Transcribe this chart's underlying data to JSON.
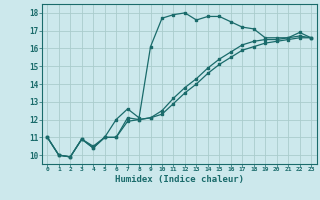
{
  "title": "",
  "xlabel": "Humidex (Indice chaleur)",
  "bg_color": "#cce8ec",
  "grid_color": "#aacccc",
  "line_color": "#1a6b6b",
  "xlim": [
    -0.5,
    23.5
  ],
  "ylim": [
    9.5,
    18.5
  ],
  "xticks": [
    0,
    1,
    2,
    3,
    4,
    5,
    6,
    7,
    8,
    9,
    10,
    11,
    12,
    13,
    14,
    15,
    16,
    17,
    18,
    19,
    20,
    21,
    22,
    23
  ],
  "yticks": [
    10,
    11,
    12,
    13,
    14,
    15,
    16,
    17,
    18
  ],
  "line1_x": [
    0,
    1,
    2,
    3,
    4,
    5,
    6,
    7,
    8,
    9,
    10,
    11,
    12,
    13,
    14,
    15,
    16,
    17,
    18,
    19,
    20,
    21,
    22,
    23
  ],
  "line1_y": [
    11.0,
    10.0,
    9.9,
    10.9,
    10.5,
    11.0,
    12.0,
    12.6,
    12.1,
    16.1,
    17.7,
    17.9,
    18.0,
    17.6,
    17.8,
    17.8,
    17.5,
    17.2,
    17.1,
    16.6,
    16.6,
    16.6,
    16.9,
    16.6
  ],
  "line2_x": [
    0,
    1,
    2,
    3,
    4,
    5,
    6,
    7,
    8,
    9,
    10,
    11,
    12,
    13,
    14,
    15,
    16,
    17,
    18,
    19,
    20,
    21,
    22,
    23
  ],
  "line2_y": [
    11.0,
    10.0,
    9.9,
    10.9,
    10.4,
    11.0,
    11.0,
    12.1,
    12.0,
    12.1,
    12.5,
    13.2,
    13.8,
    14.3,
    14.9,
    15.4,
    15.8,
    16.2,
    16.4,
    16.5,
    16.5,
    16.6,
    16.7,
    16.6
  ],
  "line3_x": [
    0,
    1,
    2,
    3,
    4,
    5,
    6,
    7,
    8,
    9,
    10,
    11,
    12,
    13,
    14,
    15,
    16,
    17,
    18,
    19,
    20,
    21,
    22,
    23
  ],
  "line3_y": [
    11.0,
    10.0,
    9.9,
    10.9,
    10.4,
    11.0,
    11.0,
    11.9,
    12.0,
    12.1,
    12.3,
    12.9,
    13.5,
    14.0,
    14.6,
    15.1,
    15.5,
    15.9,
    16.1,
    16.3,
    16.4,
    16.5,
    16.6,
    16.6
  ]
}
